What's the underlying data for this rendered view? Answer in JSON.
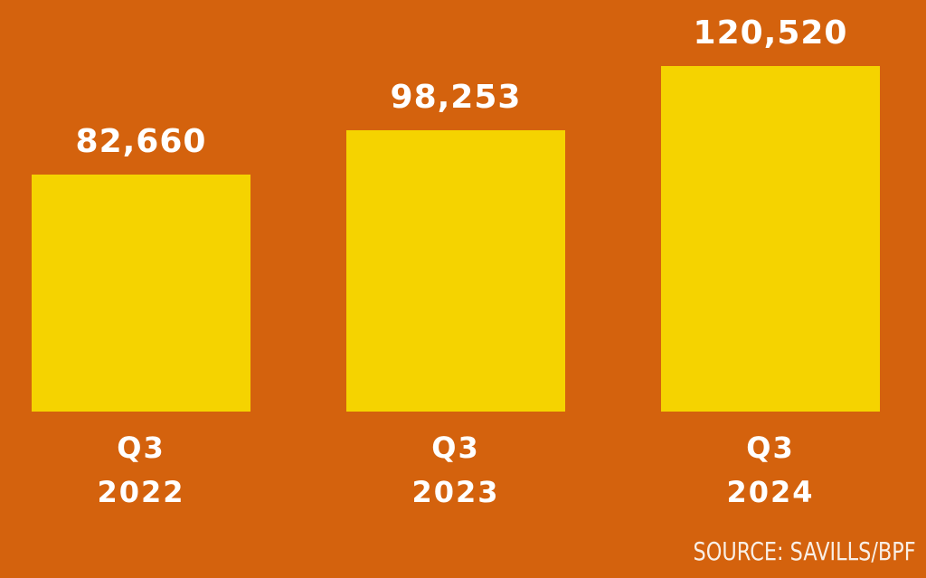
{
  "chart_data": {
    "type": "bar",
    "categories": [
      {
        "quarter": "Q3",
        "year": "2022"
      },
      {
        "quarter": "Q3",
        "year": "2023"
      },
      {
        "quarter": "Q3",
        "year": "2024"
      }
    ],
    "values": [
      82660,
      98253,
      120520
    ],
    "value_labels": [
      "82,660",
      "98,253",
      "120,520"
    ],
    "title": "",
    "xlabel": "",
    "ylabel": "",
    "ylim": [
      0,
      120520
    ],
    "grid": false,
    "legend": "none",
    "source_note": "SOURCE: SAVILLS/BPF"
  },
  "colors": {
    "background": "#D4620D",
    "bar": "#F5D300",
    "value_text": "#FFFFFF",
    "category_text": "#FFFFFF",
    "source_text": "#F9EFE6"
  }
}
